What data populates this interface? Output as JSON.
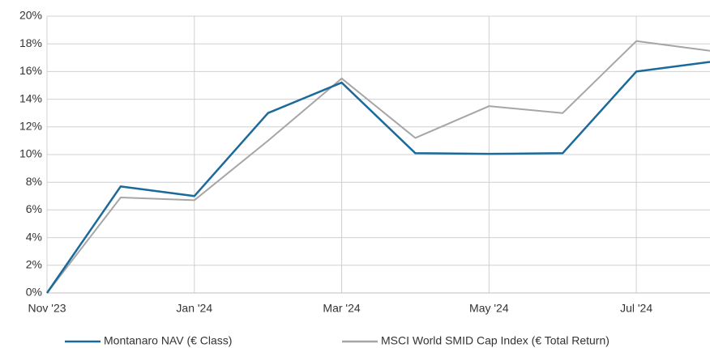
{
  "chart_data": {
    "type": "line",
    "categories": [
      "Nov '23",
      null,
      "Jan '24",
      null,
      "Mar '24",
      null,
      "May '24",
      null,
      "Jul '24",
      null
    ],
    "series": [
      {
        "name": "Montanaro NAV (€ Class)",
        "color": "#1b6a9a",
        "values": [
          0,
          7.7,
          7.0,
          13.0,
          15.2,
          10.1,
          10.05,
          10.1,
          16.0,
          16.7
        ]
      },
      {
        "name": "MSCI World SMID Cap Index (€ Total Return)",
        "color": "#a6a6a6",
        "values": [
          0,
          6.9,
          6.7,
          11.0,
          15.5,
          11.2,
          13.5,
          13.0,
          18.2,
          17.5
        ]
      }
    ],
    "ylim": [
      0,
      20
    ],
    "yticks": [
      {
        "value": 0,
        "label": "0%"
      },
      {
        "value": 2,
        "label": "2%"
      },
      {
        "value": 4,
        "label": "4%"
      },
      {
        "value": 6,
        "label": "6%"
      },
      {
        "value": 8,
        "label": "8%"
      },
      {
        "value": 10,
        "label": "10%"
      },
      {
        "value": 12,
        "label": "12%"
      },
      {
        "value": 14,
        "label": "14%"
      },
      {
        "value": 16,
        "label": "16%"
      },
      {
        "value": 18,
        "label": "18%"
      },
      {
        "value": 20,
        "label": "20%"
      }
    ],
    "grid": true
  }
}
